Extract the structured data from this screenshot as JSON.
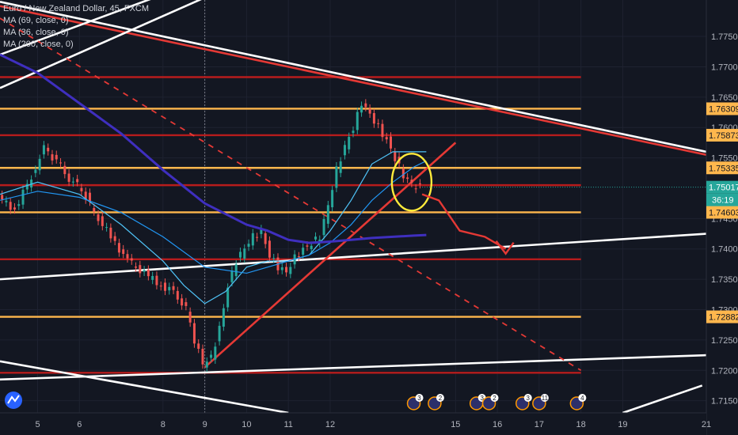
{
  "legend": {
    "symbol": "Euro / New Zealand Dollar, 45, FXCM",
    "ma1": "MA (69, close, 0)",
    "ma2": "MA (36, close, 0)",
    "ma3": "MA (200, close, 0)"
  },
  "chart_data": {
    "type": "line",
    "title": "Euro / New Zealand Dollar, 45, FXCM",
    "xlabel": "",
    "ylabel": "",
    "ylim": [
      1.713,
      1.781
    ],
    "xlim": [
      4.1,
      21.0
    ],
    "x_ticks": [
      "5",
      "6",
      "8",
      "9",
      "10",
      "11",
      "12",
      "15",
      "16",
      "17",
      "18",
      "19",
      "21"
    ],
    "y_ticks": [
      "1.77500",
      "1.77000",
      "1.76500",
      "1.76000",
      "1.75500",
      "1.74500",
      "1.74000",
      "1.73500",
      "1.73000",
      "1.72500",
      "1.72000",
      "1.71500"
    ],
    "price_tags": [
      {
        "value": 1.76309,
        "label": "1.76309",
        "color": "#ffb74d"
      },
      {
        "value": 1.75873,
        "label": "1.75873",
        "color": "#ffb74d"
      },
      {
        "value": 1.75335,
        "label": "1.75335",
        "color": "#ffb74d"
      },
      {
        "value": 1.75017,
        "label": "1.75017",
        "color": "#26a69a"
      },
      {
        "value": 1.74603,
        "label": "1.74603",
        "color": "#ffb74d"
      },
      {
        "value": 1.72882,
        "label": "1.72882",
        "color": "#ffb74d"
      }
    ],
    "countdown": "36:19",
    "series": [
      {
        "name": "Euro / New Zealand Dollar",
        "color": "#26a69a",
        "x": [
          4.1,
          4.5,
          4.9,
          5.2,
          5.5,
          5.8,
          6.1,
          6.4,
          6.8,
          7.2,
          7.6,
          8.0,
          8.3,
          8.6,
          8.8,
          9.0,
          9.2,
          9.4,
          9.6,
          9.8,
          10.0,
          10.2,
          10.4,
          10.6,
          10.8,
          11.0,
          11.2,
          11.4,
          11.6,
          11.8,
          12.0,
          12.2,
          12.4,
          12.6,
          12.8,
          13.0,
          13.2,
          13.4,
          13.6,
          13.8,
          14.0,
          14.2
        ],
        "y": [
          1.7485,
          1.7465,
          1.752,
          1.7565,
          1.7545,
          1.7515,
          1.75,
          1.746,
          1.742,
          1.738,
          1.736,
          1.734,
          1.733,
          1.73,
          1.725,
          1.721,
          1.722,
          1.727,
          1.734,
          1.738,
          1.74,
          1.742,
          1.743,
          1.739,
          1.737,
          1.736,
          1.7385,
          1.74,
          1.741,
          1.742,
          1.747,
          1.753,
          1.757,
          1.76,
          1.764,
          1.762,
          1.76,
          1.758,
          1.755,
          1.752,
          1.7505,
          1.7501
        ]
      },
      {
        "name": "MA (36, close, 0)",
        "color": "#4fc3f7",
        "x": [
          4.1,
          5.0,
          6.0,
          7.0,
          8.0,
          8.5,
          9.0,
          9.5,
          10.0,
          10.5,
          11.0,
          11.5,
          12.0,
          12.5,
          13.0,
          13.5,
          14.0,
          14.3
        ],
        "y": [
          1.749,
          1.751,
          1.749,
          1.744,
          1.738,
          1.734,
          1.731,
          1.733,
          1.737,
          1.738,
          1.738,
          1.739,
          1.743,
          1.748,
          1.754,
          1.756,
          1.756,
          1.756
        ]
      },
      {
        "name": "MA (69, close, 0)",
        "color": "#2196f3",
        "x": [
          4.1,
          5.0,
          6.0,
          7.0,
          8.0,
          9.0,
          10.0,
          10.5,
          11.0,
          11.5,
          12.0,
          12.5,
          13.0,
          13.5,
          14.0,
          14.3
        ],
        "y": [
          1.748,
          1.7495,
          1.7485,
          1.746,
          1.742,
          1.737,
          1.736,
          1.737,
          1.738,
          1.739,
          1.741,
          1.744,
          1.748,
          1.751,
          1.7535,
          1.7545
        ]
      },
      {
        "name": "MA (200, close, 0)",
        "color": "#3f2fbf",
        "x": [
          4.1,
          5.0,
          6.0,
          7.0,
          8.0,
          9.0,
          10.0,
          10.5,
          11.0,
          11.5,
          12.0,
          12.5,
          13.0,
          13.5,
          14.0,
          14.3
        ],
        "y": [
          1.772,
          1.769,
          1.764,
          1.759,
          1.753,
          1.7475,
          1.744,
          1.743,
          1.7415,
          1.741,
          1.7412,
          1.7415,
          1.7418,
          1.742,
          1.7422,
          1.7423
        ]
      }
    ],
    "horizontal_levels": [
      {
        "value": 1.7683,
        "color": "#b71c1c"
      },
      {
        "value": 1.76309,
        "color": "#ffb74d"
      },
      {
        "value": 1.75873,
        "color": "#b71c1c"
      },
      {
        "value": 1.75335,
        "color": "#ffb74d"
      },
      {
        "value": 1.7505,
        "color": "#b71c1c"
      },
      {
        "value": 1.74603,
        "color": "#ffb74d"
      },
      {
        "value": 1.7383,
        "color": "#b71c1c"
      },
      {
        "value": 1.72882,
        "color": "#ffb74d"
      },
      {
        "value": 1.7196,
        "color": "#b71c1c"
      }
    ],
    "trendlines": [
      {
        "x": [
          4.1,
          21.0
        ],
        "y": [
          1.78,
          1.7555
        ],
        "color": "#e53935"
      },
      {
        "x": [
          4.1,
          21.0
        ],
        "y": [
          1.7807,
          1.756
        ],
        "color": "#ffffff"
      },
      {
        "x": [
          4.1,
          11.5
        ],
        "y": [
          1.7665,
          1.789
        ],
        "color": "#ffffff"
      },
      {
        "x": [
          4.1,
          10.0
        ],
        "y": [
          1.772,
          1.787
        ],
        "color": "#ffffff"
      },
      {
        "x": [
          4.1,
          21.0
        ],
        "y": [
          1.735,
          1.7425
        ],
        "color": "#ffffff"
      },
      {
        "x": [
          4.1,
          21.0
        ],
        "y": [
          1.7185,
          1.7225
        ],
        "color": "#ffffff"
      },
      {
        "x": [
          4.1,
          11.0
        ],
        "y": [
          1.7215,
          1.713
        ],
        "color": "#ffffff"
      },
      {
        "x": [
          19.0,
          20.9
        ],
        "y": [
          1.713,
          1.7175
        ],
        "color": "#ffffff"
      },
      {
        "x": [
          9.0,
          15.0
        ],
        "y": [
          1.7205,
          1.7575
        ],
        "color": "#e53935"
      }
    ],
    "dashed_line": {
      "x": [
        4.1,
        18.0
      ],
      "y": [
        1.778,
        1.72
      ],
      "color": "#e53935"
    },
    "circle": {
      "x": 13.95,
      "y": 1.751,
      "color": "#ffeb3b"
    },
    "projection_arrow": {
      "x": [
        14.2,
        14.6,
        15.1,
        15.7,
        16.2
      ],
      "y": [
        1.749,
        1.748,
        1.743,
        1.742,
        1.74
      ],
      "color": "#e53935"
    },
    "event_markers": [
      "3",
      "2",
      "3",
      "2",
      "3",
      "11",
      "4"
    ]
  }
}
